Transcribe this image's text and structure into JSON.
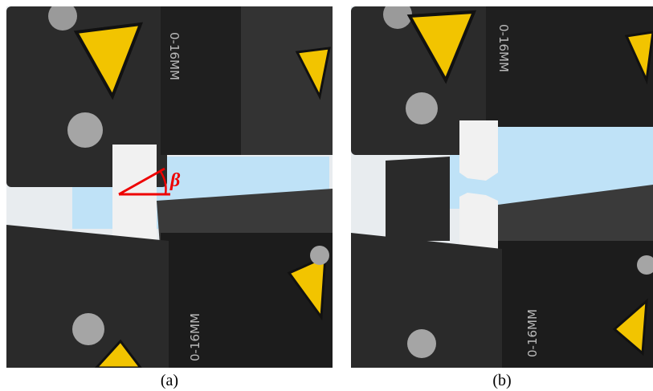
{
  "panels": [
    {
      "label": "(a)",
      "annotation": "β",
      "markings": [
        "0-16MM",
        "0-16MM"
      ]
    },
    {
      "label": "(b)",
      "markings": [
        "0-16MM",
        "0-16MM"
      ]
    }
  ]
}
